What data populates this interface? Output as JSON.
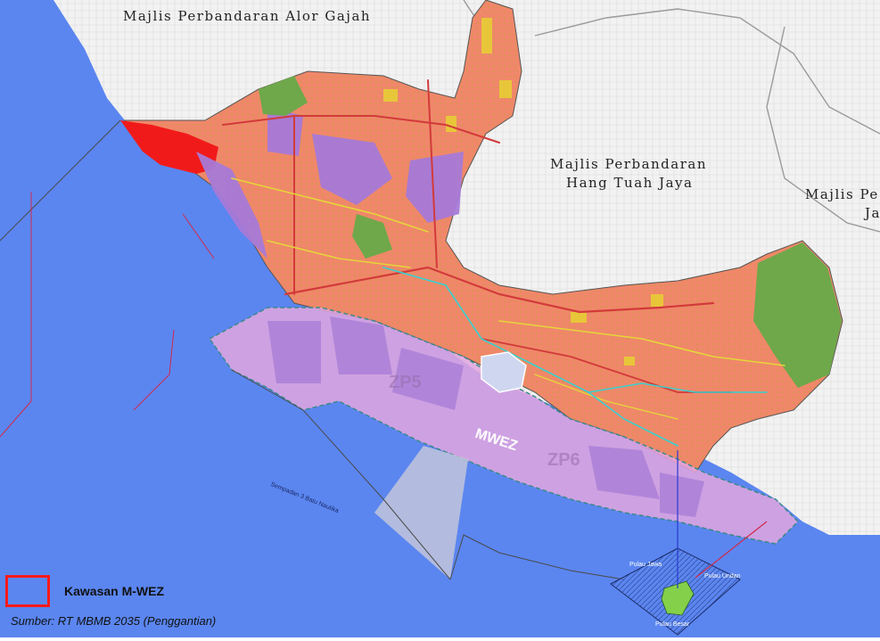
{
  "map": {
    "colors": {
      "sea": "#5b86f0",
      "land_outside": "#f2f2f2",
      "residential": "#f0876a",
      "industrial": "#a77ad8",
      "agriculture": "#6ea84a",
      "commercial": "#e8c63a",
      "mwez_zone": "#e3a6df",
      "legend_outline": "#ff1a1a",
      "road_major": "#d23a3a",
      "road_minor": "#e6d63a",
      "river": "#35d0d0"
    },
    "town_labels": [
      {
        "id": "alor-gajah",
        "text": "Majlis Perbandaran Alor Gajah"
      },
      {
        "id": "hang-tuah-jaya-1",
        "text": "Majlis Perbandaran"
      },
      {
        "id": "hang-tuah-jaya-2",
        "text": "Hang Tuah Jaya"
      },
      {
        "id": "jasin-1",
        "text": "Majlis Pe"
      },
      {
        "id": "jasin-2",
        "text": "Ja"
      }
    ],
    "zone_labels": {
      "zp5": "ZP5",
      "zp6": "ZP6",
      "mwez": "MWEZ"
    },
    "coastline_label": "Sempadan 3 Batu Nautika",
    "island_labels": [
      "Pulau Jawa",
      "Pulau Besar",
      "Pulau Undan"
    ]
  },
  "legend": {
    "label": "Kawasan M-WEZ",
    "symbol": "red-outline-box"
  },
  "source": "Sumber: RT MBMB 2035 (Penggantian)"
}
